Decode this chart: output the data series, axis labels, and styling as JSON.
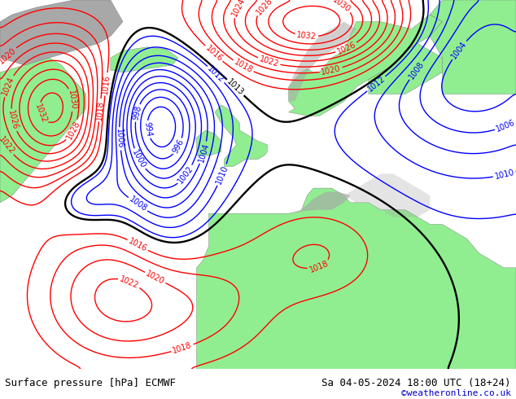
{
  "title_left": "Surface pressure [hPa] ECMWF",
  "title_right": "Sa 04-05-2024 18:00 UTC (18+24)",
  "credit": "©weatheronline.co.uk",
  "bg_color": "#d0d0d0",
  "land_color": "#90ee90",
  "ocean_color": "#d0d0d0",
  "fig_width": 6.34,
  "fig_height": 4.9,
  "dpi": 100,
  "bottom_bar_color": "#e0e0e0",
  "bottom_bar_height": 0.075,
  "title_fontsize": 9,
  "credit_fontsize": 8,
  "credit_color": "#0000cc",
  "label_fontsize": 7
}
